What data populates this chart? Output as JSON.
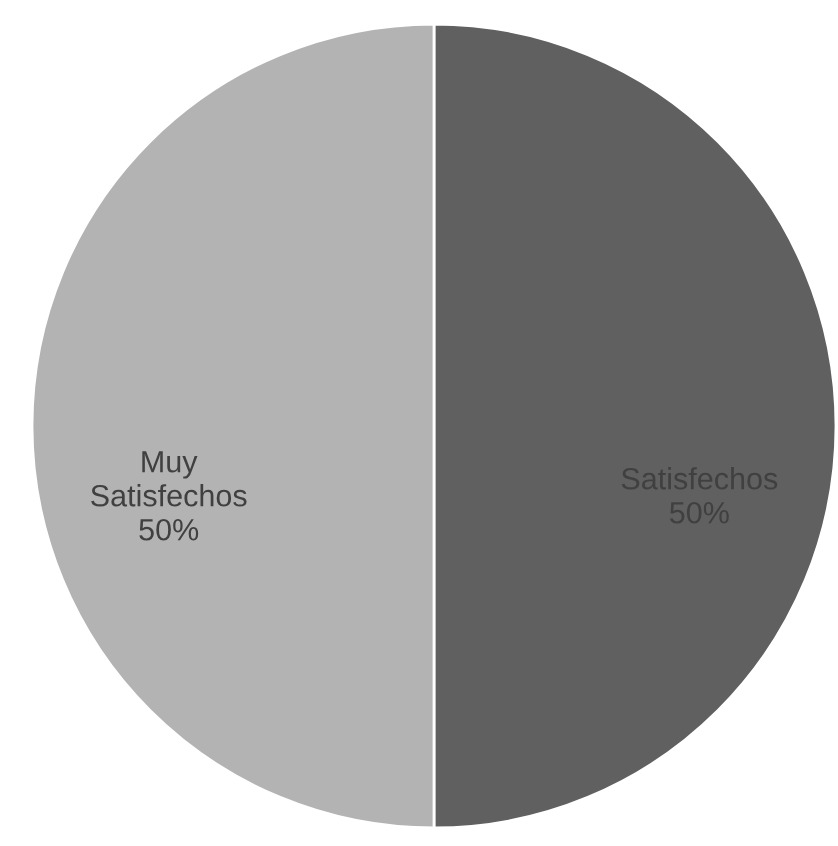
{
  "chart_data": {
    "type": "pie",
    "categories": [
      "Satisfechos",
      "Muy Satisfechos"
    ],
    "values": [
      50,
      50
    ],
    "colors": [
      "#606060",
      "#b3b3b3"
    ],
    "value_labels": [
      "50%",
      "50%"
    ]
  }
}
